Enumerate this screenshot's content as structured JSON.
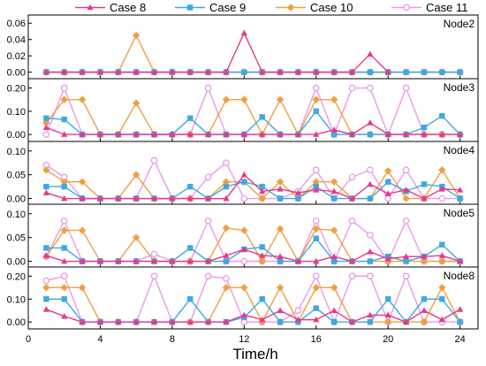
{
  "chart_data": {
    "type": "line",
    "xlabel": "Time/h",
    "x": [
      1,
      2,
      3,
      4,
      5,
      6,
      7,
      8,
      9,
      10,
      11,
      12,
      13,
      14,
      15,
      16,
      17,
      18,
      19,
      20,
      21,
      22,
      23,
      24
    ],
    "xlim": [
      0,
      25
    ],
    "xticks": [
      0,
      4,
      8,
      12,
      16,
      20,
      24
    ],
    "legend_position": "top",
    "series_styles": [
      {
        "name": "Case 8",
        "color": "#e8388a",
        "marker": "triangle"
      },
      {
        "name": "Case 9",
        "color": "#3fa9e0",
        "marker": "square"
      },
      {
        "name": "Case 10",
        "color": "#f0a040",
        "marker": "diamond"
      },
      {
        "name": "Case 11",
        "color": "#e99be8",
        "marker": "circle"
      }
    ],
    "panels": [
      {
        "label": "Node2",
        "ylim": [
          -0.008,
          0.07
        ],
        "yticks": [
          "0.00",
          "0.02",
          "0.04",
          "0.06"
        ],
        "series": [
          {
            "name": "Case 8",
            "values": [
              0,
              0,
              0,
              0,
              0,
              0,
              0,
              0,
              0,
              0,
              0,
              0.048,
              0,
              0,
              0,
              0,
              0,
              0,
              0.022,
              0,
              null,
              null,
              null,
              null
            ]
          },
          {
            "name": "Case 9",
            "values": [
              0,
              0,
              0,
              0,
              0,
              0,
              0,
              0,
              0,
              0,
              0,
              0,
              0,
              0,
              0,
              0,
              0,
              0,
              0,
              0,
              0,
              0,
              0,
              0
            ]
          },
          {
            "name": "Case 10",
            "values": [
              0,
              0,
              0,
              0,
              0,
              0.045,
              0,
              0,
              0,
              0,
              0,
              0,
              0,
              0,
              0,
              0,
              0,
              0,
              0,
              0,
              0,
              0,
              0,
              0
            ]
          },
          {
            "name": "Case 11",
            "values": [
              0,
              0,
              0,
              0,
              0,
              0,
              0,
              0,
              0,
              0,
              0,
              0,
              0,
              0,
              0,
              0,
              0,
              0,
              0,
              0,
              0,
              0,
              0,
              0
            ]
          }
        ]
      },
      {
        "label": "Node3",
        "ylim": [
          -0.03,
          0.24
        ],
        "yticks": [
          "0.00",
          "0.10",
          "0.20"
        ],
        "series": [
          {
            "name": "Case 8",
            "values": [
              0.03,
              0,
              0,
              0,
              0,
              0,
              0,
              0,
              0,
              0,
              0,
              0,
              0,
              0,
              0,
              0,
              0.02,
              0,
              0.05,
              0,
              0,
              0,
              0,
              0
            ]
          },
          {
            "name": "Case 9",
            "values": [
              0.07,
              0.065,
              0,
              0,
              0,
              0,
              0,
              0,
              0.07,
              0,
              0,
              0,
              0.075,
              0,
              0,
              0.1,
              0,
              0,
              0,
              0,
              0,
              0.03,
              0.08,
              0
            ]
          },
          {
            "name": "Case 10",
            "values": [
              0.05,
              0.15,
              0.15,
              0,
              0,
              0.135,
              0,
              0,
              0,
              0,
              0.15,
              0.15,
              0,
              0.15,
              0,
              0.15,
              0.15,
              0,
              0,
              0,
              0,
              0,
              0,
              0
            ]
          },
          {
            "name": "Case 11",
            "values": [
              0,
              0.2,
              0,
              0,
              0,
              0,
              0,
              0,
              0,
              0.2,
              0,
              0,
              0,
              0,
              0,
              0.2,
              0,
              0.2,
              0.2,
              0,
              0.2,
              0,
              0,
              0
            ]
          }
        ]
      },
      {
        "label": "Node4",
        "ylim": [
          -0.012,
          0.12
        ],
        "yticks": [
          "0.00",
          "0.05",
          "0.10"
        ],
        "series": [
          {
            "name": "Case 8",
            "values": [
              0.012,
              0,
              0,
              0,
              0,
              0,
              0,
              0,
              0,
              0,
              0,
              0.05,
              0.015,
              0.02,
              0.012,
              0.018,
              0.015,
              0,
              0.03,
              0.01,
              0.018,
              0,
              0.02,
              0.018
            ]
          },
          {
            "name": "Case 9",
            "values": [
              0.025,
              0.025,
              0,
              0,
              0,
              0,
              0,
              0,
              0.025,
              0,
              0.025,
              0.035,
              0.025,
              0,
              0,
              0.025,
              0,
              0,
              0,
              0.035,
              0.015,
              0.03,
              0.025,
              0
            ]
          },
          {
            "name": "Case 10",
            "values": [
              0.06,
              0.035,
              0.035,
              0,
              0,
              0.05,
              0,
              0,
              0,
              0,
              0.035,
              0.035,
              0,
              0.035,
              0,
              0.035,
              0.035,
              0,
              0,
              0.058,
              0,
              0,
              0.06,
              0
            ]
          },
          {
            "name": "Case 11",
            "values": [
              0.07,
              0.045,
              0,
              0,
              0,
              0,
              0.08,
              0,
              0,
              0.045,
              0.075,
              0,
              0,
              0,
              0.015,
              0.06,
              0,
              0.045,
              0.06,
              0,
              0.06,
              0,
              0,
              0
            ]
          }
        ]
      },
      {
        "label": "Node5",
        "ylim": [
          -0.012,
          0.12
        ],
        "yticks": [
          "0.00",
          "0.05",
          "0.10"
        ],
        "series": [
          {
            "name": "Case 8",
            "values": [
              0.012,
              0,
              0,
              0,
              0,
              0,
              0,
              0,
              0,
              0,
              0.012,
              0.025,
              0.012,
              0.01,
              0,
              0,
              0.01,
              0,
              0.02,
              0.005,
              0.01,
              0.01,
              0.012,
              0
            ]
          },
          {
            "name": "Case 9",
            "values": [
              0.028,
              0.028,
              0,
              0,
              0,
              0,
              0,
              0,
              0.028,
              0,
              0,
              0.025,
              0.03,
              0,
              0,
              0.048,
              0,
              0,
              0,
              0.01,
              0,
              0.01,
              0.035,
              0
            ]
          },
          {
            "name": "Case 10",
            "values": [
              0.01,
              0.065,
              0.065,
              0,
              0,
              0.05,
              0,
              0,
              0,
              0,
              0.07,
              0.065,
              0,
              0.068,
              0,
              0.068,
              0.065,
              0,
              0,
              0,
              0,
              0,
              0,
              0
            ]
          },
          {
            "name": "Case 11",
            "values": [
              0.01,
              0.085,
              0,
              0,
              0,
              0,
              0.015,
              0,
              0,
              0.085,
              0,
              0,
              0,
              0,
              0,
              0.085,
              0,
              0.085,
              0.055,
              0,
              0.085,
              0,
              0,
              0
            ]
          }
        ]
      },
      {
        "label": "Node8",
        "ylim": [
          -0.03,
          0.24
        ],
        "yticks": [
          "0.00",
          "0.10",
          "0.20"
        ],
        "series": [
          {
            "name": "Case 8",
            "values": [
              0.055,
              0.025,
              0,
              0,
              0,
              0,
              0,
              0,
              0,
              0,
              0,
              0.03,
              0.01,
              0.05,
              0.01,
              0.01,
              0.05,
              0,
              0.03,
              0.03,
              0,
              0.05,
              0.01,
              0.055
            ]
          },
          {
            "name": "Case 9",
            "values": [
              0.1,
              0.1,
              0,
              0,
              0,
              0,
              0,
              0,
              0.1,
              0,
              0,
              0.02,
              0.1,
              0,
              0,
              0.06,
              0,
              0,
              0,
              0.1,
              0,
              0.1,
              0.1,
              0
            ]
          },
          {
            "name": "Case 10",
            "values": [
              0.15,
              0.15,
              0.15,
              0,
              0,
              0,
              0,
              0,
              0,
              0,
              0.15,
              0.15,
              0,
              0.15,
              0,
              0.15,
              0.15,
              0,
              0,
              0,
              0,
              0,
              0.15,
              0
            ]
          },
          {
            "name": "Case 11",
            "values": [
              0.18,
              0.2,
              0,
              0,
              0,
              0,
              0.2,
              0,
              0,
              0.2,
              0.19,
              0,
              0,
              0,
              0.05,
              0.2,
              0,
              0.2,
              0.2,
              0,
              0.2,
              0,
              0,
              0
            ]
          }
        ]
      }
    ]
  }
}
